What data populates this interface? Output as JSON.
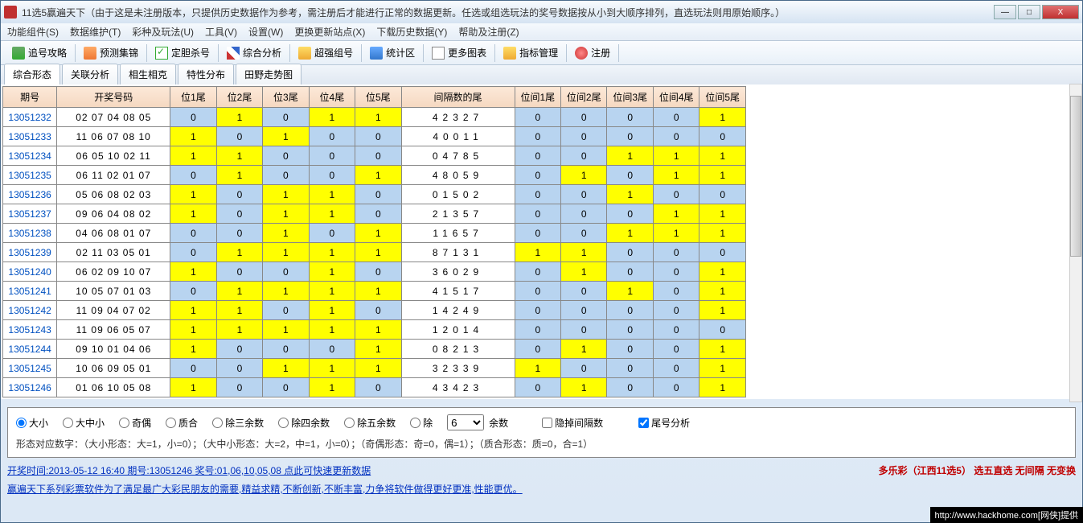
{
  "window": {
    "title": "11选5赢遍天下（由于这是未注册版本，只提供历史数据作为参考，需注册后才能进行正常的数据更新。任选或组选玩法的奖号数据按从小到大顺序排列，直选玩法则用原始顺序。）"
  },
  "menu": [
    "功能组件(S)",
    "数据维护(T)",
    "彩种及玩法(U)",
    "工具(V)",
    "设置(W)",
    "更换更新站点(X)",
    "下载历史数据(Y)",
    "帮助及注册(Z)"
  ],
  "toolbar": [
    {
      "label": "追号攻略",
      "ic": "ic-g"
    },
    {
      "label": "预测集锦",
      "ic": "ic-o"
    },
    {
      "label": "定胆杀号",
      "ic": "ic-chk"
    },
    {
      "label": "综合分析",
      "ic": "ic-flag"
    },
    {
      "label": "超强组号",
      "ic": "ic-y"
    },
    {
      "label": "统计区",
      "ic": "ic-b"
    },
    {
      "label": "更多图表",
      "ic": "ic-t"
    },
    {
      "label": "指标管理",
      "ic": "ic-y"
    },
    {
      "label": "注册",
      "ic": "ic-r"
    }
  ],
  "tabs": [
    "综合形态",
    "关联分析",
    "相生相克",
    "特性分布",
    "田野走势图"
  ],
  "headers": [
    "期号",
    "开奖号码",
    "位1尾",
    "位2尾",
    "位3尾",
    "位4尾",
    "位5尾",
    "间隔数的尾",
    "位间1尾",
    "位间2尾",
    "位间3尾",
    "位间4尾",
    "位间5尾"
  ],
  "rows": [
    {
      "p": "13051232",
      "n": "02 07 04 08 05",
      "w": [
        0,
        1,
        0,
        1,
        1
      ],
      "g": "42327",
      "gw": [
        0,
        0,
        0,
        0,
        1
      ]
    },
    {
      "p": "13051233",
      "n": "11 06 07 08 10",
      "w": [
        1,
        0,
        1,
        0,
        0
      ],
      "g": "40011",
      "gw": [
        0,
        0,
        0,
        0,
        0
      ]
    },
    {
      "p": "13051234",
      "n": "06 05 10 02 11",
      "w": [
        1,
        1,
        0,
        0,
        0
      ],
      "g": "04785",
      "gw": [
        0,
        0,
        1,
        1,
        1
      ]
    },
    {
      "p": "13051235",
      "n": "06 11 02 01 07",
      "w": [
        0,
        1,
        0,
        0,
        1
      ],
      "g": "48059",
      "gw": [
        0,
        1,
        0,
        1,
        1
      ]
    },
    {
      "p": "13051236",
      "n": "05 06 08 02 03",
      "w": [
        1,
        0,
        1,
        1,
        0
      ],
      "g": "01502",
      "gw": [
        0,
        0,
        1,
        0,
        0
      ]
    },
    {
      "p": "13051237",
      "n": "09 06 04 08 02",
      "w": [
        1,
        0,
        1,
        1,
        0
      ],
      "g": "21357",
      "gw": [
        0,
        0,
        0,
        1,
        1
      ]
    },
    {
      "p": "13051238",
      "n": "04 06 08 01 07",
      "w": [
        0,
        0,
        1,
        0,
        1
      ],
      "g": "11657",
      "gw": [
        0,
        0,
        1,
        1,
        1
      ]
    },
    {
      "p": "13051239",
      "n": "02 11 03 05 01",
      "w": [
        0,
        1,
        1,
        1,
        1
      ],
      "g": "87131",
      "gw": [
        1,
        1,
        0,
        0,
        0
      ]
    },
    {
      "p": "13051240",
      "n": "06 02 09 10 07",
      "w": [
        1,
        0,
        0,
        1,
        0
      ],
      "g": "36029",
      "gw": [
        0,
        1,
        0,
        0,
        1
      ]
    },
    {
      "p": "13051241",
      "n": "10 05 07 01 03",
      "w": [
        0,
        1,
        1,
        1,
        1
      ],
      "g": "41517",
      "gw": [
        0,
        0,
        1,
        0,
        1
      ]
    },
    {
      "p": "13051242",
      "n": "11 09 04 07 02",
      "w": [
        1,
        1,
        0,
        1,
        0
      ],
      "g": "14249",
      "gw": [
        0,
        0,
        0,
        0,
        1
      ]
    },
    {
      "p": "13051243",
      "n": "11 09 06 05 07",
      "w": [
        1,
        1,
        1,
        1,
        1
      ],
      "g": "12014",
      "gw": [
        0,
        0,
        0,
        0,
        0
      ]
    },
    {
      "p": "13051244",
      "n": "09 10 01 04 06",
      "w": [
        1,
        0,
        0,
        0,
        1
      ],
      "g": "08213",
      "gw": [
        0,
        1,
        0,
        0,
        1
      ]
    },
    {
      "p": "13051245",
      "n": "10 06 09 05 01",
      "w": [
        0,
        0,
        1,
        1,
        1
      ],
      "g": "32339",
      "gw": [
        1,
        0,
        0,
        0,
        1
      ]
    },
    {
      "p": "13051246",
      "n": "01 06 10 05 08",
      "w": [
        1,
        0,
        0,
        1,
        0
      ],
      "g": "43423",
      "gw": [
        0,
        1,
        0,
        0,
        1
      ]
    }
  ],
  "filters": {
    "radios": [
      "大小",
      "大中小",
      "奇偶",
      "质合",
      "除三余数",
      "除四余数",
      "除五余数",
      "除"
    ],
    "selected": 0,
    "divisor": "6",
    "after_div": "余数",
    "hide_gap": "隐掉间隔数",
    "tail_analysis": "尾号分析",
    "desc": "形态对应数字：（大小形态：大=1，小=0）；（大中小形态：大=2，中=1，小=0）；（奇偶形态：奇=0，偶=1）；（质合形态：质=0，合=1）"
  },
  "status": {
    "line1_left": "开奖时间:2013-05-12 16:40 期号:13051246 奖号:01,06,10,05,08 点此可快速更新数据",
    "line1_right": "多乐彩（江西11选5）   选五直选  无间隔  无变换",
    "line2": "赢遍天下系列彩票软件为了满足最广大彩民朋友的需要,精益求精,不断创新,不断丰富,力争将软件做得更好更准,性能更优。"
  },
  "footer": "http://www.hackhome.com[网侠]提供"
}
